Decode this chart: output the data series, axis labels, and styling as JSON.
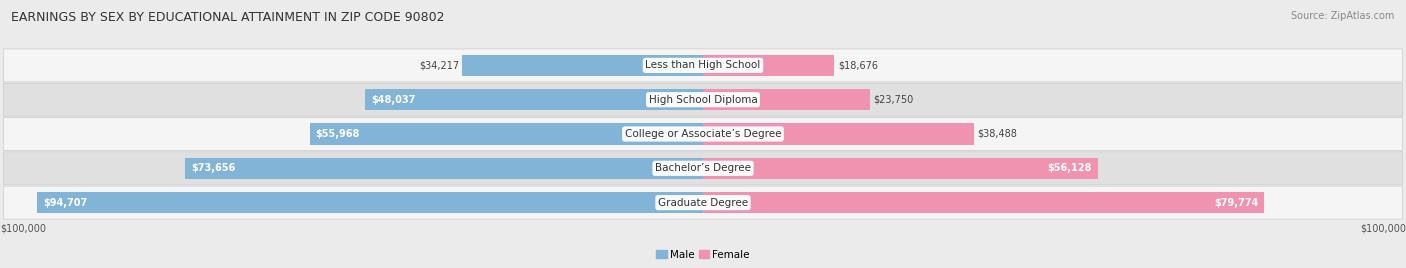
{
  "title": "EARNINGS BY SEX BY EDUCATIONAL ATTAINMENT IN ZIP CODE 90802",
  "source": "Source: ZipAtlas.com",
  "categories": [
    "Less than High School",
    "High School Diploma",
    "College or Associate’s Degree",
    "Bachelor’s Degree",
    "Graduate Degree"
  ],
  "male_values": [
    34217,
    48037,
    55968,
    73656,
    94707
  ],
  "female_values": [
    18676,
    23750,
    38488,
    56128,
    79774
  ],
  "male_color": "#82b4d8",
  "female_color": "#f093b0",
  "male_label": "Male",
  "female_label": "Female",
  "max_value": 100000,
  "axis_label": "$100,000",
  "bg_color": "#ebebeb",
  "row_colors": [
    "#f5f5f5",
    "#e0e0e0"
  ],
  "title_fontsize": 9,
  "source_fontsize": 7,
  "value_fontsize": 7,
  "cat_fontsize": 7.5,
  "legend_fontsize": 7.5
}
